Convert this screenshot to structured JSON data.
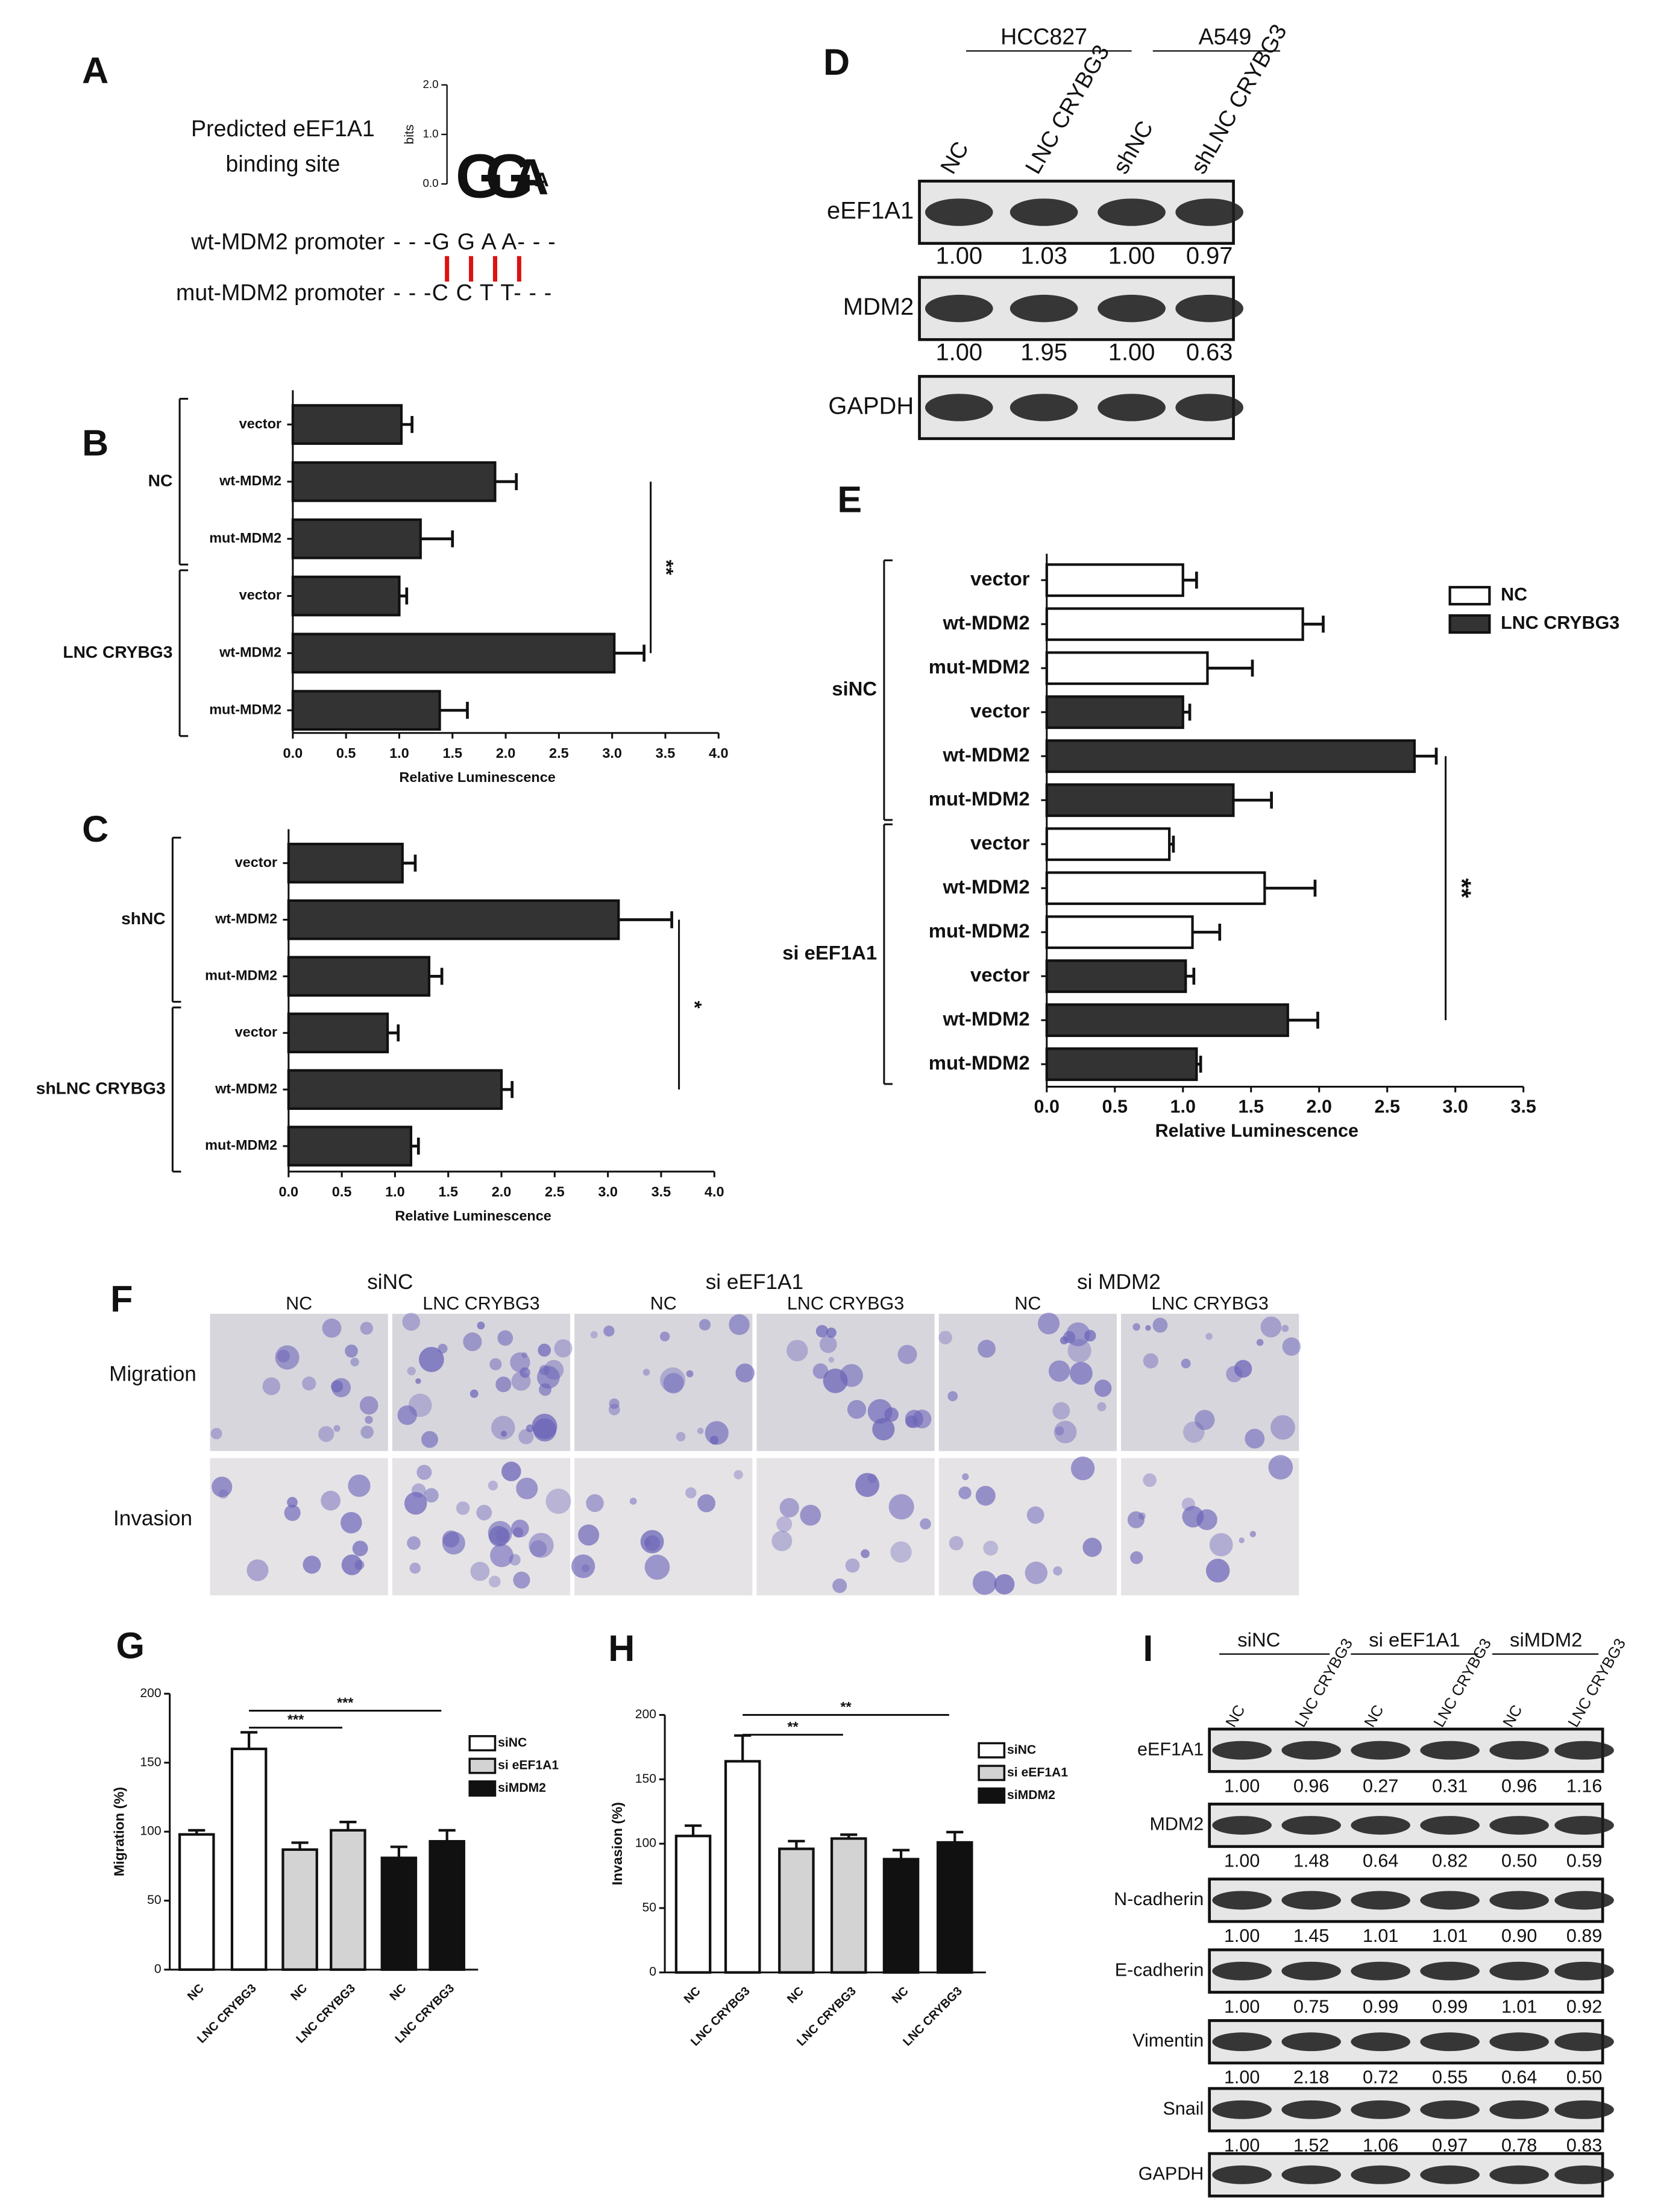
{
  "panels": {
    "A": {
      "letter": "A",
      "title_lines": [
        "Predicted eEF1A1",
        "binding site"
      ],
      "logo_axis_label": "bits",
      "logo_ticks": [
        "2.0",
        "1.0",
        "0.0"
      ],
      "logo_letters": [
        "G",
        "G",
        "A",
        "A"
      ],
      "sequences": [
        {
          "name": "wt-MDM2 promoter",
          "sequence": "- - -G G A A- - -"
        },
        {
          "name": "mut-MDM2 promoter",
          "sequence": "- - -C C T T- - -"
        }
      ]
    },
    "D": {
      "letter": "D",
      "cell_lines": [
        "HCC827",
        "A549"
      ],
      "lanes": [
        "NC",
        "LNC CRYBG3",
        "shNC",
        "shLNC CRYBG3"
      ],
      "rows": [
        {
          "name": "eEF1A1",
          "quant": [
            "1.00",
            "1.03",
            "1.00",
            "0.97"
          ]
        },
        {
          "name": "MDM2",
          "quant": [
            "1.00",
            "1.95",
            "1.00",
            "0.63"
          ]
        },
        {
          "name": "GAPDH"
        }
      ]
    },
    "F": {
      "letter": "F",
      "groups": [
        "siNC",
        "si eEF1A1",
        "si MDM2"
      ],
      "conditions": [
        "NC",
        "LNC CRYBG3",
        "NC",
        "LNC CRYBG3",
        "NC",
        "LNC CRYBG3"
      ],
      "rows": [
        "Migration",
        "Invasion"
      ]
    },
    "I": {
      "letter": "I",
      "groups": [
        "siNC",
        "si eEF1A1",
        "siMDM2"
      ],
      "lanes": [
        "NC",
        "LNC CRYBG3",
        "NC",
        "LNC CRYBG3",
        "NC",
        "LNC CRYBG3"
      ],
      "rows": [
        {
          "name": "eEF1A1",
          "quant": [
            "1.00",
            "0.96",
            "0.27",
            "0.31",
            "0.96",
            "1.16"
          ]
        },
        {
          "name": "MDM2",
          "quant": [
            "1.00",
            "1.48",
            "0.64",
            "0.82",
            "0.50",
            "0.59"
          ]
        },
        {
          "name": "N-cadherin",
          "quant": [
            "1.00",
            "1.45",
            "1.01",
            "1.01",
            "0.90",
            "0.89"
          ]
        },
        {
          "name": "E-cadherin",
          "quant": [
            "1.00",
            "0.75",
            "0.99",
            "0.99",
            "1.01",
            "0.92"
          ]
        },
        {
          "name": "Vimentin",
          "quant": [
            "1.00",
            "2.18",
            "0.72",
            "0.55",
            "0.64",
            "0.50"
          ]
        },
        {
          "name": "Snail",
          "quant": [
            "1.00",
            "1.52",
            "1.06",
            "0.97",
            "0.78",
            "0.83"
          ]
        },
        {
          "name": "GAPDH"
        }
      ]
    }
  },
  "chart_data": [
    {
      "type": "hbar",
      "panel": "B",
      "color": "#333333",
      "xlabel": "Relative Luminescence",
      "xlim": [
        0,
        4
      ],
      "xticks": [
        {
          "value": 0,
          "label": "0.0"
        },
        0.5,
        {
          "value": 1,
          "label": "1.0"
        },
        1.5,
        {
          "value": 2,
          "label": "2.0"
        },
        2.5,
        {
          "value": 3,
          "label": "3.0"
        },
        3.5,
        {
          "value": 4,
          "label": "4.0"
        }
      ],
      "groups": [
        {
          "name": "NC",
          "categories": [
            "vector",
            "wt-MDM2",
            "mut-MDM2"
          ],
          "values": [
            1.02,
            1.9,
            1.2
          ],
          "errors": [
            0.1,
            0.2,
            0.3
          ]
        },
        {
          "name": "LNC CRYBG3",
          "categories": [
            "vector",
            "wt-MDM2",
            "mut-MDM2"
          ],
          "values": [
            1.0,
            3.02,
            1.38
          ],
          "errors": [
            0.07,
            0.28,
            0.26
          ]
        }
      ],
      "annotations": [
        "**"
      ]
    },
    {
      "type": "hbar",
      "panel": "C",
      "color": "#333333",
      "xlabel": "Relative Luminescence",
      "xlim": [
        0,
        4
      ],
      "xticks": [
        {
          "value": 0,
          "label": "0.0"
        },
        0.5,
        {
          "value": 1,
          "label": "1.0"
        },
        1.5,
        {
          "value": 2,
          "label": "2.0"
        },
        2.5,
        {
          "value": 3,
          "label": "3.0"
        },
        3.5,
        {
          "value": 4,
          "label": "4.0"
        }
      ],
      "groups": [
        {
          "name": "shNC",
          "categories": [
            "vector",
            "wt-MDM2",
            "mut-MDM2"
          ],
          "values": [
            1.07,
            3.1,
            1.32
          ],
          "errors": [
            0.12,
            0.5,
            0.12
          ]
        },
        {
          "name": "shLNC CRYBG3",
          "categories": [
            "vector",
            "wt-MDM2",
            "mut-MDM2"
          ],
          "values": [
            0.93,
            2.0,
            1.15
          ],
          "errors": [
            0.1,
            0.1,
            0.07
          ]
        }
      ],
      "annotations": [
        "*"
      ]
    },
    {
      "type": "hbar",
      "panel": "E",
      "xlabel": "Relative Luminescence",
      "xlim": [
        0,
        3.5
      ],
      "xticks": [
        {
          "value": 0,
          "label": "0.0"
        },
        0.5,
        {
          "value": 1,
          "label": "1.0"
        },
        1.5,
        {
          "value": 2,
          "label": "2.0"
        },
        2.5,
        {
          "value": 3,
          "label": "3.0"
        },
        3.5
      ],
      "series": [
        {
          "name": "NC",
          "color": "#ffffff"
        },
        {
          "name": "LNC CRYBG3",
          "color": "#333333"
        }
      ],
      "groups": [
        {
          "name": "siNC",
          "blocks": [
            {
              "categories": [
                "vector",
                "wt-MDM2",
                "mut-MDM2"
              ],
              "values": [
                1.0,
                1.88,
                1.18
              ],
              "errors": [
                0.1,
                0.15,
                0.33
              ]
            },
            {
              "categories": [
                "vector",
                "wt-MDM2",
                "mut-MDM2"
              ],
              "values": [
                1.0,
                2.7,
                1.37
              ],
              "errors": [
                0.05,
                0.16,
                0.28
              ]
            }
          ]
        },
        {
          "name": "si eEF1A1",
          "blocks": [
            {
              "categories": [
                "vector",
                "wt-MDM2",
                "mut-MDM2"
              ],
              "values": [
                0.9,
                1.6,
                1.07
              ],
              "errors": [
                0.03,
                0.37,
                0.2
              ]
            },
            {
              "categories": [
                "vector",
                "wt-MDM2",
                "mut-MDM2"
              ],
              "values": [
                1.02,
                1.77,
                1.1
              ],
              "errors": [
                0.06,
                0.22,
                0.03
              ]
            }
          ]
        }
      ],
      "annotations": [
        "**"
      ]
    },
    {
      "type": "bar",
      "panel": "G",
      "ylabel": "Migration (%)",
      "ylim": [
        0,
        200
      ],
      "yticks": [
        0,
        50,
        100,
        150,
        200
      ],
      "series": [
        {
          "name": "siNC",
          "color": "#ffffff",
          "categories": [
            "NC",
            "LNC CRYBG3"
          ],
          "values": [
            98,
            160
          ],
          "errors": [
            3,
            12
          ]
        },
        {
          "name": "si eEF1A1",
          "color": "#d3d3d3",
          "categories": [
            "NC",
            "LNC CRYBG3"
          ],
          "values": [
            87,
            101
          ],
          "errors": [
            5,
            6
          ]
        },
        {
          "name": "siMDM2",
          "color": "#111111",
          "categories": [
            "NC",
            "LNC CRYBG3"
          ],
          "values": [
            81,
            93
          ],
          "errors": [
            8,
            8
          ]
        }
      ],
      "annotations": [
        "***",
        "***"
      ]
    },
    {
      "type": "bar",
      "panel": "H",
      "ylabel": "Invasion (%)",
      "ylim": [
        0,
        200
      ],
      "yticks": [
        0,
        50,
        100,
        150,
        200
      ],
      "series": [
        {
          "name": "siNC",
          "color": "#ffffff",
          "categories": [
            "NC",
            "LNC CRYBG3"
          ],
          "values": [
            106,
            164
          ],
          "errors": [
            8,
            20
          ]
        },
        {
          "name": "si eEF1A1",
          "color": "#d3d3d3",
          "categories": [
            "NC",
            "LNC CRYBG3"
          ],
          "values": [
            96,
            104
          ],
          "errors": [
            6,
            3
          ]
        },
        {
          "name": "siMDM2",
          "color": "#111111",
          "categories": [
            "NC",
            "LNC CRYBG3"
          ],
          "values": [
            88,
            101
          ],
          "errors": [
            7,
            8
          ]
        }
      ],
      "annotations": [
        "**",
        "**"
      ]
    }
  ]
}
